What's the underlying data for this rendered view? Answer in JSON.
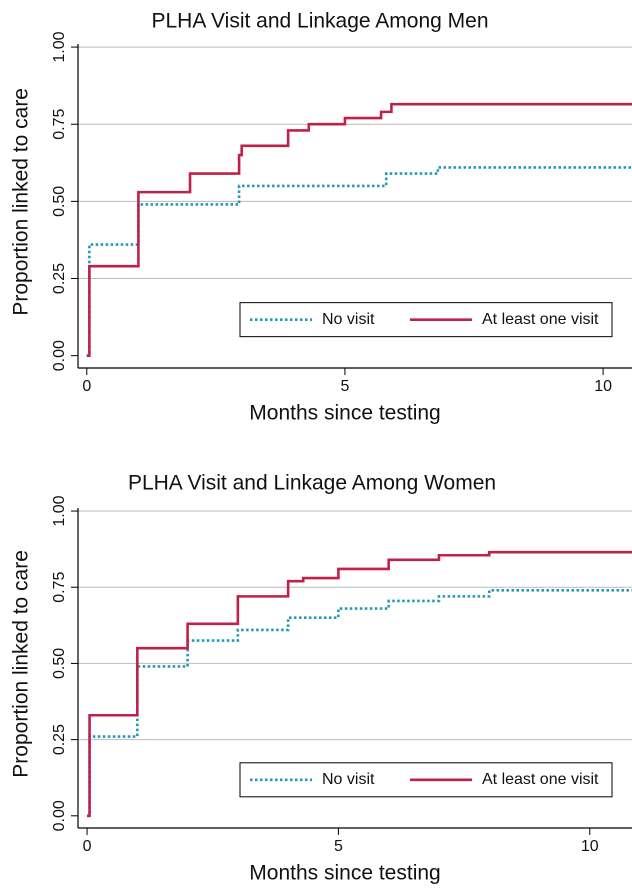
{
  "chart_data": [
    {
      "type": "step",
      "title": "PLHA Visit and Linkage Among Men",
      "xlabel": "Months since testing",
      "ylabel": "Proportion linked to care",
      "xlim": [
        -0.17,
        10.56
      ],
      "ylim": [
        -0.04,
        1.01
      ],
      "xticks": [
        0,
        5,
        10
      ],
      "yticks": [
        {
          "value": 0,
          "label": "0.00"
        },
        {
          "value": 0.25,
          "label": "0.25"
        },
        {
          "value": 0.5,
          "label": "0.50"
        },
        {
          "value": 0.75,
          "label": "0.75"
        },
        {
          "value": 1,
          "label": "1.00"
        }
      ],
      "grid": true,
      "legend": "lower right",
      "series": [
        {
          "name": "No visit",
          "color": "#1f9ab4",
          "style": "dotted",
          "x": [
            0,
            0.05,
            1.0,
            2.95,
            5.8,
            6.8,
            10.56
          ],
          "values": [
            0,
            0.36,
            0.49,
            0.55,
            0.59,
            0.61,
            0.61
          ]
        },
        {
          "name": "At least one visit",
          "color": "#c0214b",
          "style": "solid",
          "x": [
            0,
            0.05,
            1.0,
            2.0,
            2.95,
            3.0,
            3.9,
            4.3,
            5.0,
            5.7,
            5.9,
            10.56
          ],
          "values": [
            0,
            0.29,
            0.53,
            0.59,
            0.65,
            0.68,
            0.73,
            0.75,
            0.77,
            0.79,
            0.815,
            0.815
          ]
        }
      ]
    },
    {
      "type": "step",
      "title": "PLHA Visit and Linkage Among Women",
      "xlabel": "Months since testing",
      "ylabel": "Proportion linked to care",
      "xlim": [
        -0.18,
        10.84
      ],
      "ylim": [
        -0.04,
        1.01
      ],
      "xticks": [
        0,
        5,
        10
      ],
      "yticks": [
        {
          "value": 0,
          "label": "0.00"
        },
        {
          "value": 0.25,
          "label": "0.25"
        },
        {
          "value": 0.5,
          "label": "0.50"
        },
        {
          "value": 0.75,
          "label": "0.75"
        },
        {
          "value": 1,
          "label": "1.00"
        }
      ],
      "grid": true,
      "legend": "lower right",
      "series": [
        {
          "name": "No visit",
          "color": "#1f9ab4",
          "style": "dotted",
          "x": [
            0,
            0.05,
            1.0,
            2.0,
            3.0,
            4.0,
            5.0,
            6.0,
            7.0,
            8.0,
            10.84
          ],
          "values": [
            0,
            0.26,
            0.49,
            0.575,
            0.61,
            0.65,
            0.68,
            0.705,
            0.72,
            0.74,
            0.74
          ]
        },
        {
          "name": "At least one visit",
          "color": "#c0214b",
          "style": "solid",
          "x": [
            0,
            0.05,
            1.0,
            2.0,
            3.0,
            4.0,
            4.3,
            5.0,
            6.0,
            7.0,
            8.0,
            10.84
          ],
          "values": [
            0,
            0.33,
            0.55,
            0.63,
            0.72,
            0.77,
            0.78,
            0.81,
            0.84,
            0.855,
            0.865,
            0.865
          ]
        }
      ]
    }
  ]
}
